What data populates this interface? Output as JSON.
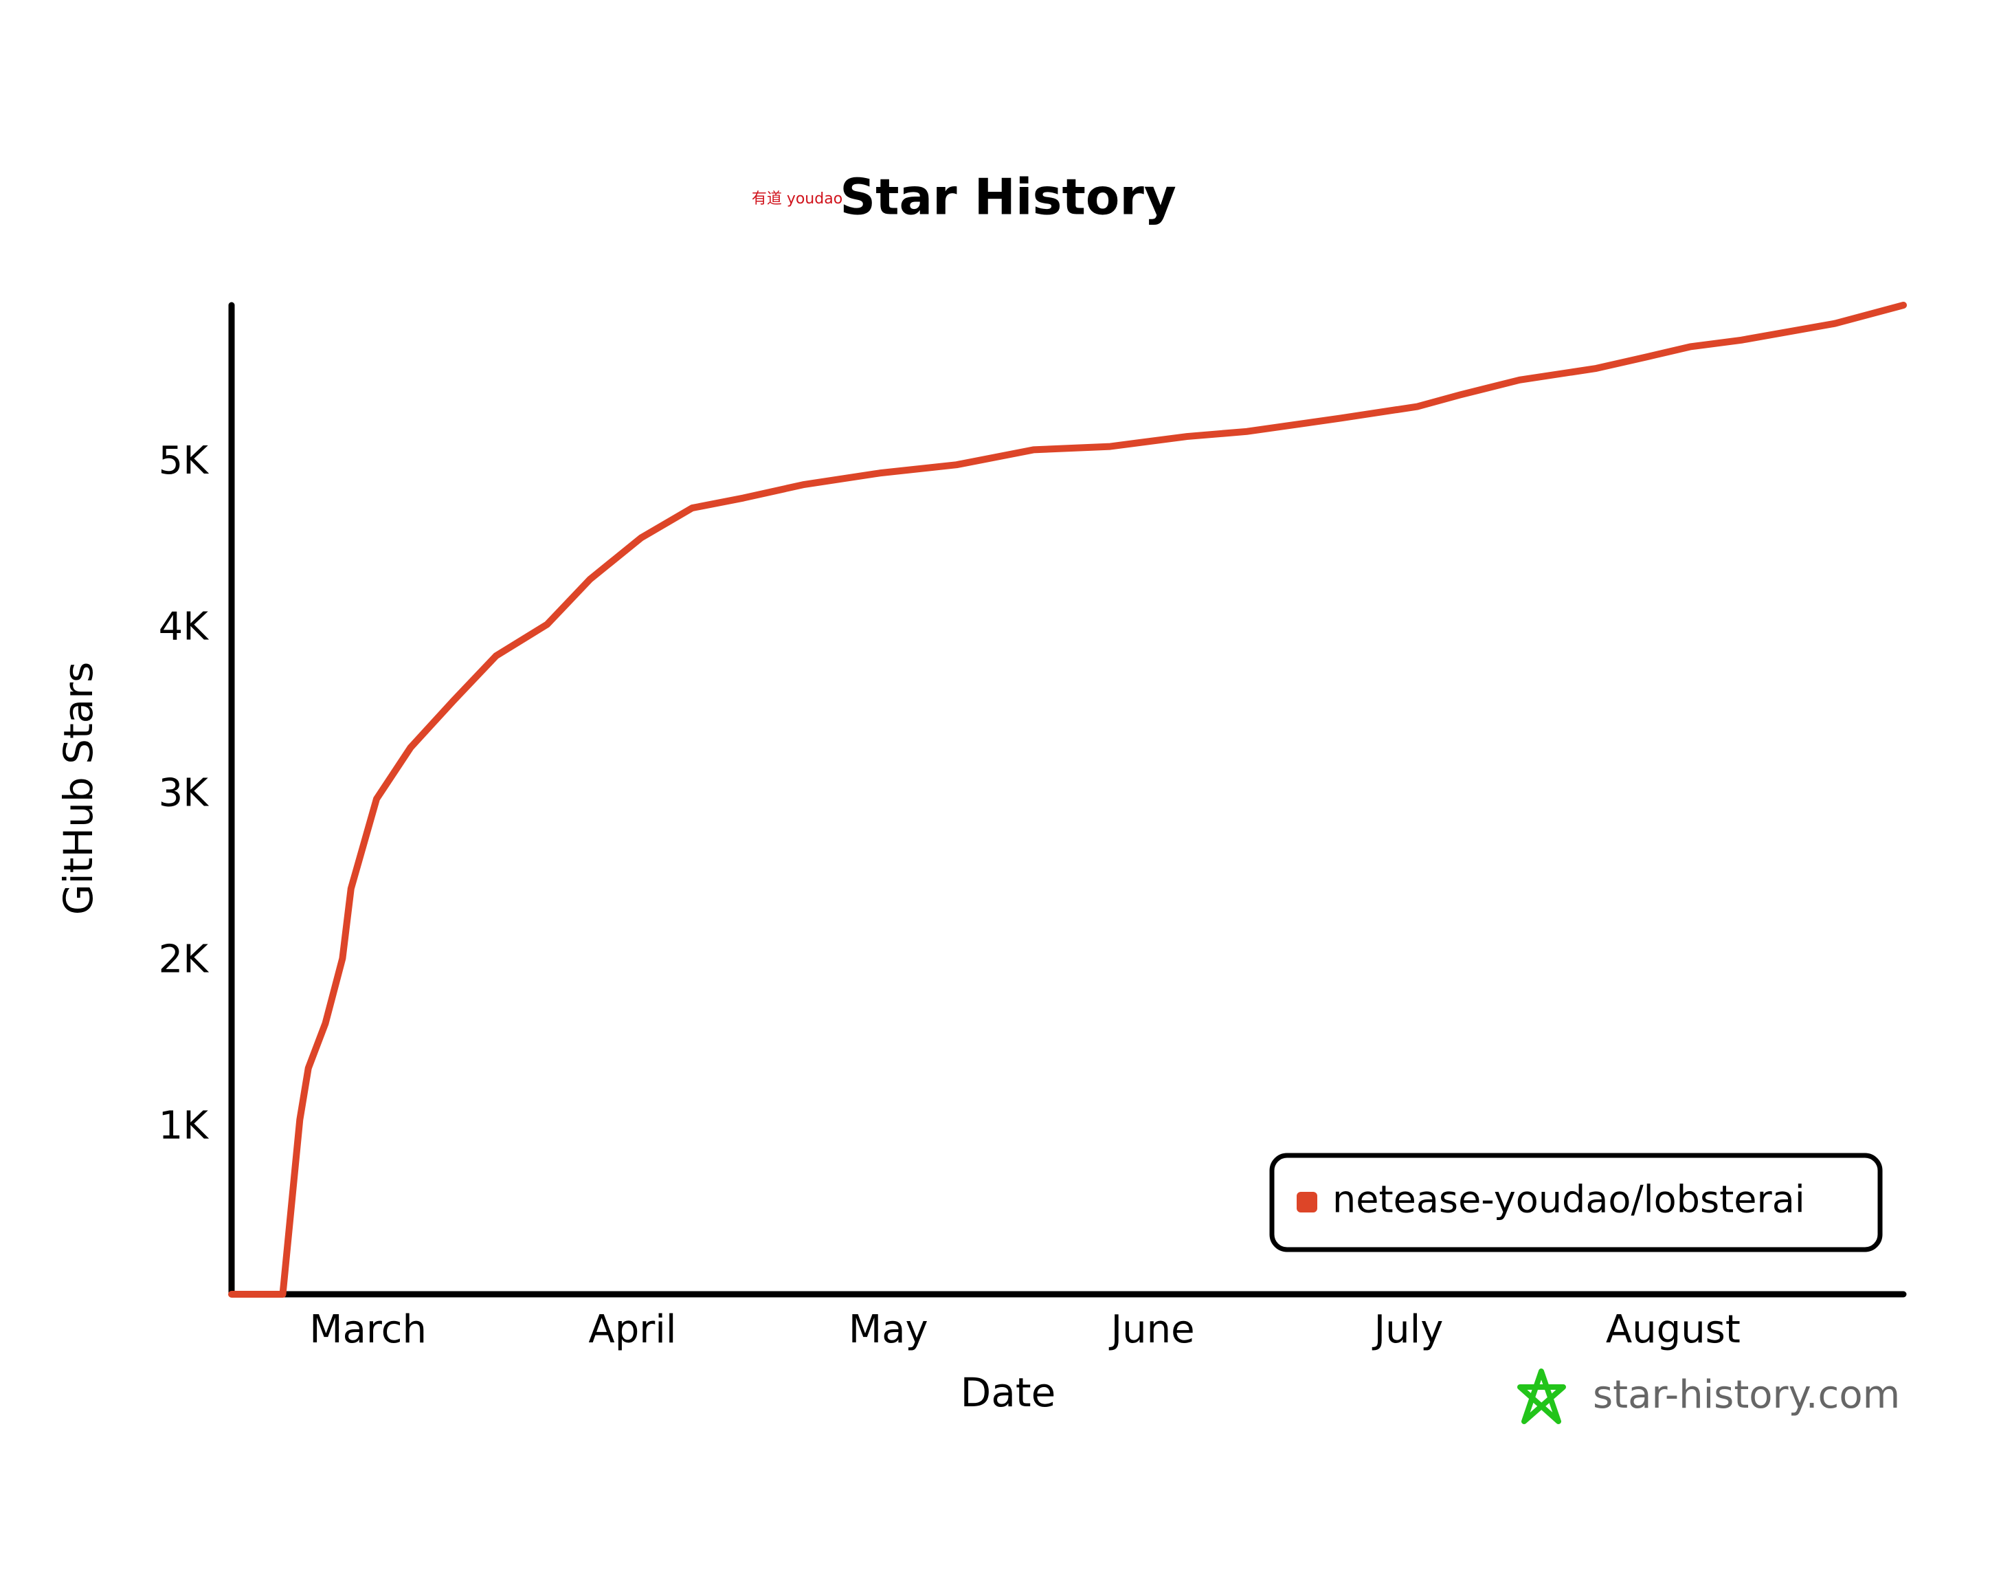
{
  "chart_data": {
    "type": "line",
    "title": "Star History",
    "logo_text": "有道 youdao",
    "x_label": "Date",
    "y_label": "GitHub Stars",
    "watermark": "star-history.com",
    "x": [
      0,
      6,
      8,
      9,
      11,
      13,
      14,
      17,
      21,
      26,
      31,
      37,
      42,
      48,
      54,
      60,
      67,
      76,
      85,
      94,
      103,
      112,
      119,
      130,
      139,
      144,
      151,
      160,
      166,
      171,
      177,
      188,
      196
    ],
    "series": [
      {
        "name": "netease-youdao/lobsterai",
        "color": "#dd4528",
        "values": [
          0,
          0,
          1050,
          1360,
          1630,
          2020,
          2440,
          2980,
          3290,
          3570,
          3840,
          4030,
          4300,
          4550,
          4730,
          4790,
          4870,
          4940,
          4990,
          5080,
          5100,
          5160,
          5190,
          5270,
          5340,
          5410,
          5500,
          5570,
          5640,
          5700,
          5740,
          5840,
          5950
        ]
      }
    ],
    "xlim": [
      0,
      196
    ],
    "xticks": [
      {
        "value": 16,
        "label": "March"
      },
      {
        "value": 47,
        "label": "April"
      },
      {
        "value": 77,
        "label": "May"
      },
      {
        "value": 108,
        "label": "June"
      },
      {
        "value": 138,
        "label": "July"
      },
      {
        "value": 169,
        "label": "August"
      }
    ],
    "ylim": [
      0,
      5950
    ],
    "yticks": [
      {
        "value": 1000,
        "label": "1K"
      },
      {
        "value": 2000,
        "label": "2K"
      },
      {
        "value": 3000,
        "label": "3K"
      },
      {
        "value": 4000,
        "label": "4K"
      },
      {
        "value": 5000,
        "label": "5K"
      }
    ],
    "grid": false,
    "legend": "lower right"
  }
}
